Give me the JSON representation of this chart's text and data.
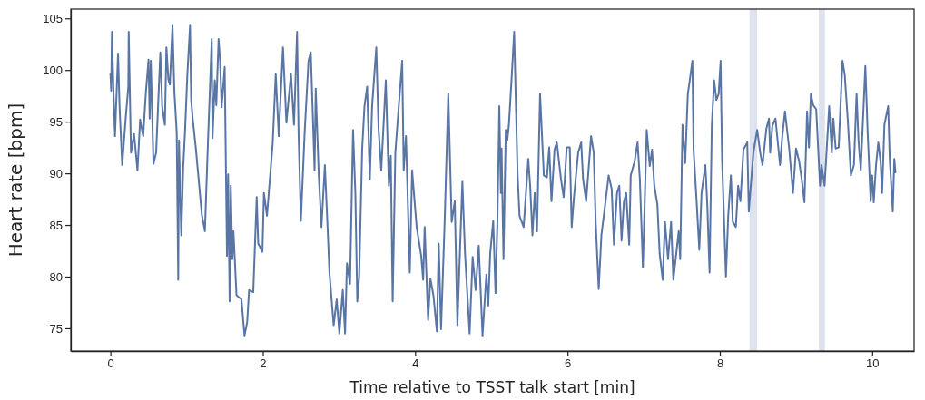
{
  "chart_data": {
    "type": "line",
    "xlabel": "Time relative to TSST talk start [min]",
    "ylabel": "Heart rate [bpm]",
    "xlim": [
      -0.52,
      10.55
    ],
    "ylim": [
      72.8,
      105.9
    ],
    "xticks": [
      0,
      2,
      4,
      6,
      8,
      10
    ],
    "yticks": [
      75,
      80,
      85,
      90,
      95,
      100,
      105
    ],
    "grid": false,
    "bands": [
      {
        "axis": "x",
        "from": 8.39,
        "to": 8.49,
        "color": "#dde2ee"
      },
      {
        "axis": "x",
        "from": 9.3,
        "to": 9.38,
        "color": "#dde2ee"
      }
    ],
    "series": [
      {
        "color": "#5975a4",
        "x": [
          0,
          0.01,
          0.02,
          0.04,
          0.06,
          0.1,
          0.12,
          0.155,
          0.2,
          0.235,
          0.24,
          0.27,
          0.31,
          0.355,
          0.39,
          0.43,
          0.465,
          0.5,
          0.515,
          0.53,
          0.565,
          0.6,
          0.655,
          0.68,
          0.715,
          0.735,
          0.76,
          0.78,
          0.815,
          0.84,
          0.87,
          0.89,
          0.9,
          0.93,
          0.955,
          0.98,
          1.01,
          1.045,
          1.06,
          1.08,
          1.12,
          1.2,
          1.24,
          1.28,
          1.33,
          1.34,
          1.37,
          1.39,
          1.42,
          1.44,
          1.46,
          1.5,
          1.53,
          1.545,
          1.565,
          1.58,
          1.6,
          1.615,
          1.655,
          1.72,
          1.76,
          1.795,
          1.82,
          1.875,
          1.92,
          1.94,
          1.995,
          2.015,
          2.055,
          2.13,
          2.17,
          2.21,
          2.265,
          2.31,
          2.37,
          2.41,
          2.45,
          2.47,
          2.5,
          2.55,
          2.6,
          2.63,
          2.68,
          2.695,
          2.735,
          2.77,
          2.815,
          2.855,
          2.875,
          2.93,
          2.97,
          3.005,
          3.05,
          3.08,
          3.105,
          3.145,
          3.185,
          3.215,
          3.24,
          3.265,
          3.305,
          3.335,
          3.37,
          3.405,
          3.435,
          3.49,
          3.52,
          3.555,
          3.615,
          3.655,
          3.68,
          3.705,
          3.74,
          3.78,
          3.83,
          3.85,
          3.88,
          3.93,
          3.96,
          4.02,
          4.08,
          4.105,
          4.125,
          4.17,
          4.2,
          4.24,
          4.285,
          4.31,
          4.34,
          4.39,
          4.435,
          4.48,
          4.52,
          4.555,
          4.62,
          4.655,
          4.715,
          4.755,
          4.795,
          4.835,
          4.885,
          4.935,
          4.96,
          4.985,
          5.025,
          5.055,
          5.08,
          5.105,
          5.125,
          5.135,
          5.16,
          5.19,
          5.21,
          5.23,
          5.265,
          5.3,
          5.345,
          5.37,
          5.425,
          5.485,
          5.51,
          5.54,
          5.57,
          5.6,
          5.64,
          5.69,
          5.73,
          5.76,
          5.79,
          5.83,
          5.86,
          5.915,
          5.95,
          5.99,
          6.03,
          6.055,
          6.085,
          6.14,
          6.18,
          6.205,
          6.245,
          6.31,
          6.345,
          6.37,
          6.41,
          6.445,
          6.5,
          6.54,
          6.58,
          6.61,
          6.65,
          6.68,
          6.71,
          6.74,
          6.77,
          6.81,
          6.83,
          6.88,
          6.92,
          6.95,
          6.99,
          7.04,
          7.08,
          7.11,
          7.14,
          7.18,
          7.21,
          7.25,
          7.28,
          7.32,
          7.36,
          7.39,
          7.46,
          7.48,
          7.51,
          7.545,
          7.58,
          7.605,
          7.64,
          7.655,
          7.695,
          7.73,
          7.76,
          7.81,
          7.835,
          7.865,
          7.895,
          7.925,
          7.955,
          7.985,
          8.01,
          8.03,
          8.08,
          8.11,
          8.145,
          8.17,
          8.21,
          8.24,
          8.27,
          8.31,
          8.36,
          8.38,
          8.44,
          8.49,
          8.53,
          8.56,
          8.61,
          8.645,
          8.66,
          8.69,
          8.73,
          8.79,
          8.82,
          8.855,
          8.91,
          8.96,
          9,
          9.04,
          9.075,
          9.11,
          9.145,
          9.17,
          9.195,
          9.225,
          9.265,
          9.315,
          9.335,
          9.375,
          9.435,
          9.47,
          9.49,
          9.52,
          9.56,
          9.61,
          9.64,
          9.68,
          9.72,
          9.76,
          9.795,
          9.82,
          9.85,
          9.91,
          9.94,
          9.98,
          10,
          10.02,
          10.05,
          10.08,
          10.11,
          10.13,
          10.16,
          10.21,
          10.23,
          10.27,
          10.29,
          10.305
        ],
        "values": [
          99.6,
          98,
          103.7,
          98,
          93.6,
          101.6,
          96.4,
          90.8,
          95.3,
          98.4,
          103.7,
          92,
          93.8,
          90.3,
          95.2,
          93.6,
          97.8,
          101,
          95.3,
          100.9,
          90.9,
          92,
          101.7,
          96.4,
          94.7,
          102.2,
          99.1,
          98.6,
          104.3,
          97.8,
          94,
          79.7,
          93.2,
          84,
          90.5,
          94.2,
          99.6,
          104.3,
          97.1,
          95.3,
          92.5,
          86,
          84.4,
          93,
          103,
          93.4,
          99,
          96.6,
          103,
          100.9,
          96.4,
          100.3,
          82,
          89.9,
          77.6,
          88.8,
          81.7,
          84.4,
          78.2,
          77.8,
          74.3,
          75.6,
          78.7,
          78.5,
          87.7,
          83.2,
          82.4,
          88.1,
          85.9,
          92.9,
          99.6,
          93.6,
          102.2,
          94.9,
          99.6,
          94.7,
          103.7,
          93.8,
          85.4,
          94,
          100.9,
          101.7,
          90.3,
          98.2,
          89.8,
          84.8,
          90.8,
          84,
          80.4,
          75.3,
          77.8,
          74.5,
          78.7,
          74.5,
          81.3,
          79.3,
          94.2,
          88.1,
          77.6,
          80,
          92.4,
          96.5,
          98.4,
          89.4,
          96.5,
          102.2,
          94.3,
          90.3,
          99,
          88.8,
          91.7,
          77.6,
          92,
          96,
          100.9,
          90.3,
          93.6,
          80.4,
          90.3,
          84.8,
          82,
          79.7,
          84.8,
          75.8,
          79.8,
          78.2,
          74.7,
          83.2,
          74.9,
          85.9,
          97.7,
          85.3,
          87.3,
          75.3,
          89.2,
          82.2,
          74.5,
          81.9,
          78.7,
          83,
          74.3,
          80.2,
          77.2,
          82.2,
          85.4,
          78.4,
          85.3,
          96.5,
          88.1,
          92.4,
          81.7,
          94.2,
          93.2,
          94.6,
          99,
          103.7,
          89.9,
          85.9,
          84.8,
          91.4,
          88.8,
          84,
          88.1,
          84.4,
          97.7,
          89.8,
          89.6,
          92.5,
          87.3,
          92.3,
          93,
          89.4,
          87.7,
          92.5,
          92.5,
          84.8,
          87.7,
          92,
          93,
          89.4,
          87.3,
          93.6,
          92,
          85.3,
          78.8,
          84,
          87.3,
          89.8,
          88.5,
          83.1,
          88.1,
          88.8,
          83.5,
          87.2,
          88.1,
          83.1,
          89.8,
          91.1,
          93,
          89.4,
          80.9,
          94.2,
          90.7,
          92.3,
          88.8,
          87,
          82.2,
          79.7,
          85.3,
          81.7,
          85.3,
          79.7,
          84.4,
          81.7,
          94.7,
          91,
          97.7,
          99,
          100.9,
          92.3,
          87.3,
          82.6,
          88.1,
          90.8,
          87,
          80.4,
          94.7,
          99,
          97.1,
          97.7,
          100.9,
          91.2,
          80,
          85.9,
          89.8,
          85.3,
          84.8,
          88.8,
          87.3,
          92.3,
          93,
          86.3,
          92,
          94.2,
          92,
          90.8,
          94.3,
          95.3,
          92,
          94.6,
          95.3,
          90.8,
          93.6,
          96,
          92.4,
          88.1,
          92.4,
          91.2,
          89.4,
          87.2,
          96,
          92.5,
          97.7,
          96.6,
          96.2,
          88.8,
          90.8,
          88.8,
          96.5,
          92,
          95.3,
          92.4,
          92.5,
          100.9,
          99.5,
          95.1,
          89.8,
          90.8,
          97.7,
          93.2,
          90.3,
          100.4,
          94,
          87.3,
          89.8,
          87.2,
          90.8,
          93,
          91.1,
          88.1,
          94.7,
          96.5,
          91.4,
          86.3,
          91.4,
          90.1
        ]
      }
    ]
  }
}
